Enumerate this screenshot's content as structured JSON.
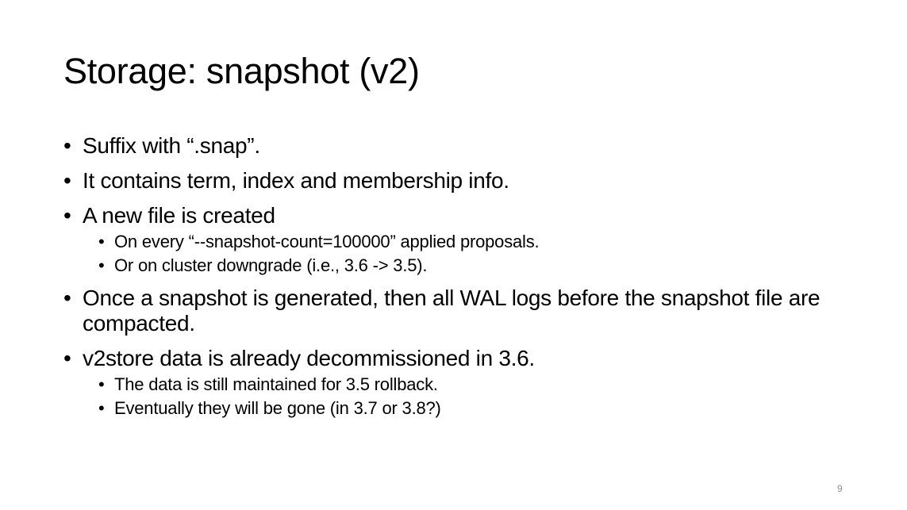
{
  "slide": {
    "title": "Storage: snapshot (v2)",
    "page_number": "9",
    "bullet_glyph": "•",
    "bullets": [
      {
        "text": "Suffix with “.snap”.",
        "sub": []
      },
      {
        "text": "It contains term, index and membership info.",
        "sub": []
      },
      {
        "text": "A new file is created",
        "sub": [
          "On every “--snapshot-count=100000” applied proposals.",
          "Or on cluster downgrade (i.e., 3.6 -> 3.5)."
        ]
      },
      {
        "text": "Once a snapshot is generated, then all WAL logs before the snapshot file are compacted.",
        "sub": []
      },
      {
        "text": "v2store data is already decommissioned in 3.6.",
        "sub": [
          "The data is still maintained for 3.5 rollback.",
          "Eventually they will be gone (in 3.7 or 3.8?)"
        ]
      }
    ]
  }
}
